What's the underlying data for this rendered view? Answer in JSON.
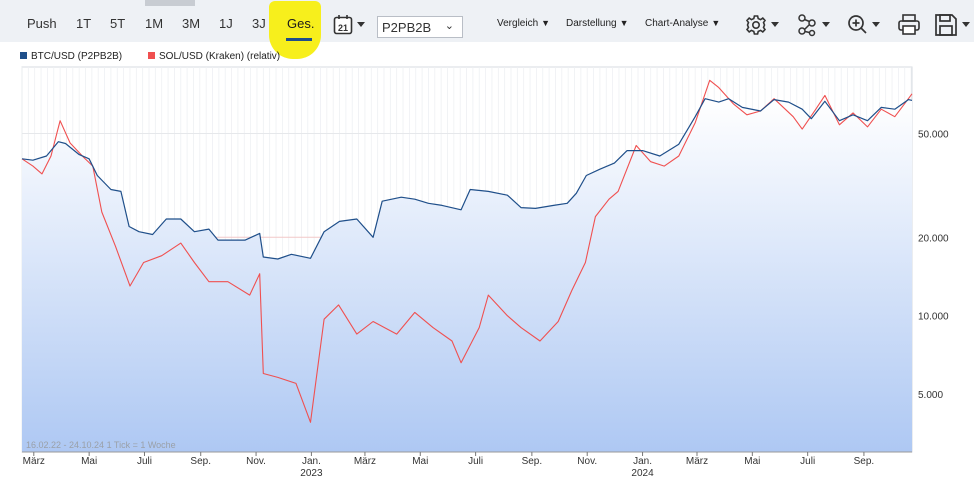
{
  "toolbar": {
    "tabs": [
      {
        "label": "Push",
        "active": false
      },
      {
        "label": "1T",
        "active": false
      },
      {
        "label": "5T",
        "active": false
      },
      {
        "label": "1M",
        "active": false
      },
      {
        "label": "3M",
        "active": false
      },
      {
        "label": "1J",
        "active": false
      },
      {
        "label": "3J",
        "active": false
      },
      {
        "label": "Ges.",
        "active": true
      }
    ],
    "calendar_day": "21",
    "exchange_select": "P2PB2B",
    "menus": {
      "compare": "Vergleich",
      "display": "Darstellung",
      "analysis": "Chart-Analyse"
    },
    "icons": [
      "calendar-icon",
      "gear-icon",
      "network-icon",
      "zoom-icon",
      "print-icon",
      "save-icon"
    ]
  },
  "legend": {
    "btc": {
      "label": "BTC/USD (P2PB2B)",
      "color": "#1f4f8a"
    },
    "sol": {
      "label": "SOL/USD (Kraken) (relativ)",
      "color": "#f05050"
    }
  },
  "caption": "16.02.22 - 24.10.24   1 Tick = 1 Woche",
  "chart_data": {
    "type": "line",
    "yscale": "log",
    "ylim": [
      3000,
      90000
    ],
    "y_ticks": [
      {
        "value": 5000,
        "label": "5.000"
      },
      {
        "value": 10000,
        "label": "10.000"
      },
      {
        "value": 20000,
        "label": "20.000"
      },
      {
        "value": 50000,
        "label": "50.000"
      }
    ],
    "x_range": [
      "2022-02-16",
      "2024-10-24"
    ],
    "x_ticks": [
      {
        "date": "2022-03-01",
        "label": "März",
        "year": ""
      },
      {
        "date": "2022-05-01",
        "label": "Mai",
        "year": ""
      },
      {
        "date": "2022-07-01",
        "label": "Juli",
        "year": ""
      },
      {
        "date": "2022-09-01",
        "label": "Sep.",
        "year": ""
      },
      {
        "date": "2022-11-01",
        "label": "Nov.",
        "year": ""
      },
      {
        "date": "2023-01-01",
        "label": "Jan.",
        "year": "2023"
      },
      {
        "date": "2023-03-01",
        "label": "März",
        "year": ""
      },
      {
        "date": "2023-05-01",
        "label": "Mai",
        "year": ""
      },
      {
        "date": "2023-07-01",
        "label": "Juli",
        "year": ""
      },
      {
        "date": "2023-09-01",
        "label": "Sep.",
        "year": ""
      },
      {
        "date": "2023-11-01",
        "label": "Nov.",
        "year": ""
      },
      {
        "date": "2024-01-01",
        "label": "Jan.",
        "year": "2024"
      },
      {
        "date": "2024-03-01",
        "label": "März",
        "year": ""
      },
      {
        "date": "2024-05-01",
        "label": "Mai",
        "year": ""
      },
      {
        "date": "2024-07-01",
        "label": "Juli",
        "year": ""
      },
      {
        "date": "2024-09-01",
        "label": "Sep.",
        "year": ""
      }
    ],
    "series": [
      {
        "name": "BTC/USD (P2PB2B)",
        "color": "#1f4f8a",
        "fill": true,
        "points": [
          [
            "2022-02-16",
            40000
          ],
          [
            "2022-02-28",
            39500
          ],
          [
            "2022-03-15",
            41000
          ],
          [
            "2022-03-28",
            46500
          ],
          [
            "2022-04-05",
            45800
          ],
          [
            "2022-04-20",
            41500
          ],
          [
            "2022-05-01",
            40000
          ],
          [
            "2022-05-10",
            34500
          ],
          [
            "2022-05-25",
            30500
          ],
          [
            "2022-06-05",
            30000
          ],
          [
            "2022-06-14",
            22000
          ],
          [
            "2022-06-25",
            21000
          ],
          [
            "2022-07-10",
            20500
          ],
          [
            "2022-07-25",
            23500
          ],
          [
            "2022-08-10",
            23500
          ],
          [
            "2022-08-25",
            21000
          ],
          [
            "2022-09-10",
            21500
          ],
          [
            "2022-09-20",
            19500
          ],
          [
            "2022-10-05",
            19500
          ],
          [
            "2022-10-20",
            19500
          ],
          [
            "2022-11-05",
            20700
          ],
          [
            "2022-11-09",
            16800
          ],
          [
            "2022-11-25",
            16500
          ],
          [
            "2022-12-10",
            17200
          ],
          [
            "2022-12-31",
            16600
          ],
          [
            "2023-01-15",
            21000
          ],
          [
            "2023-02-01",
            23000
          ],
          [
            "2023-02-20",
            23500
          ],
          [
            "2023-03-10",
            20000
          ],
          [
            "2023-03-20",
            27500
          ],
          [
            "2023-04-10",
            28500
          ],
          [
            "2023-04-25",
            28000
          ],
          [
            "2023-05-10",
            27000
          ],
          [
            "2023-05-25",
            26500
          ],
          [
            "2023-06-15",
            25500
          ],
          [
            "2023-06-25",
            30500
          ],
          [
            "2023-07-15",
            30000
          ],
          [
            "2023-08-05",
            29000
          ],
          [
            "2023-08-20",
            26000
          ],
          [
            "2023-09-05",
            25800
          ],
          [
            "2023-09-25",
            26500
          ],
          [
            "2023-10-10",
            27000
          ],
          [
            "2023-10-20",
            29500
          ],
          [
            "2023-10-31",
            34500
          ],
          [
            "2023-11-15",
            36500
          ],
          [
            "2023-12-01",
            38500
          ],
          [
            "2023-12-15",
            43000
          ],
          [
            "2024-01-01",
            43000
          ],
          [
            "2024-01-20",
            41000
          ],
          [
            "2024-02-10",
            45500
          ],
          [
            "2024-02-28",
            58000
          ],
          [
            "2024-03-10",
            68000
          ],
          [
            "2024-03-25",
            66000
          ],
          [
            "2024-04-05",
            68000
          ],
          [
            "2024-04-20",
            63000
          ],
          [
            "2024-05-10",
            61000
          ],
          [
            "2024-05-25",
            67500
          ],
          [
            "2024-06-10",
            66000
          ],
          [
            "2024-06-25",
            62000
          ],
          [
            "2024-07-05",
            57000
          ],
          [
            "2024-07-20",
            66500
          ],
          [
            "2024-08-05",
            56000
          ],
          [
            "2024-08-20",
            59000
          ],
          [
            "2024-09-05",
            56000
          ],
          [
            "2024-09-20",
            63000
          ],
          [
            "2024-10-05",
            62000
          ],
          [
            "2024-10-20",
            67500
          ],
          [
            "2024-10-24",
            67000
          ]
        ]
      },
      {
        "name": "SOL/USD (Kraken) (relativ)",
        "color": "#f05050",
        "fill": false,
        "points": [
          [
            "2022-02-16",
            40000
          ],
          [
            "2022-02-28",
            37500
          ],
          [
            "2022-03-10",
            35000
          ],
          [
            "2022-03-20",
            41000
          ],
          [
            "2022-03-30",
            56000
          ],
          [
            "2022-04-10",
            46000
          ],
          [
            "2022-04-25",
            40500
          ],
          [
            "2022-05-05",
            37500
          ],
          [
            "2022-05-15",
            25000
          ],
          [
            "2022-05-30",
            18500
          ],
          [
            "2022-06-15",
            13000
          ],
          [
            "2022-06-30",
            16000
          ],
          [
            "2022-07-20",
            17000
          ],
          [
            "2022-08-10",
            19000
          ],
          [
            "2022-08-25",
            16000
          ],
          [
            "2022-09-10",
            13500
          ],
          [
            "2022-10-01",
            13500
          ],
          [
            "2022-10-25",
            12000
          ],
          [
            "2022-11-05",
            14500
          ],
          [
            "2022-11-09",
            6000
          ],
          [
            "2022-11-25",
            5800
          ],
          [
            "2022-12-15",
            5500
          ],
          [
            "2022-12-31",
            3900
          ],
          [
            "2023-01-15",
            9700
          ],
          [
            "2023-01-31",
            11000
          ],
          [
            "2023-02-20",
            8500
          ],
          [
            "2023-03-10",
            9500
          ],
          [
            "2023-04-05",
            8500
          ],
          [
            "2023-04-25",
            10300
          ],
          [
            "2023-05-15",
            9000
          ],
          [
            "2023-06-05",
            8000
          ],
          [
            "2023-06-15",
            6600
          ],
          [
            "2023-07-05",
            9000
          ],
          [
            "2023-07-15",
            12000
          ],
          [
            "2023-08-05",
            10000
          ],
          [
            "2023-08-20",
            9000
          ],
          [
            "2023-09-10",
            8000
          ],
          [
            "2023-09-30",
            9500
          ],
          [
            "2023-10-15",
            12500
          ],
          [
            "2023-10-30",
            16000
          ],
          [
            "2023-11-10",
            24000
          ],
          [
            "2023-11-25",
            28000
          ],
          [
            "2023-12-05",
            30000
          ],
          [
            "2023-12-25",
            45000
          ],
          [
            "2024-01-10",
            39000
          ],
          [
            "2024-01-25",
            37500
          ],
          [
            "2024-02-10",
            41000
          ],
          [
            "2024-02-28",
            55000
          ],
          [
            "2024-03-15",
            80000
          ],
          [
            "2024-03-25",
            75000
          ],
          [
            "2024-04-10",
            65000
          ],
          [
            "2024-04-25",
            59000
          ],
          [
            "2024-05-10",
            61000
          ],
          [
            "2024-05-25",
            68000
          ],
          [
            "2024-06-15",
            58000
          ],
          [
            "2024-06-25",
            52000
          ],
          [
            "2024-07-10",
            62000
          ],
          [
            "2024-07-20",
            70000
          ],
          [
            "2024-08-05",
            54000
          ],
          [
            "2024-08-20",
            60000
          ],
          [
            "2024-09-05",
            53000
          ],
          [
            "2024-09-20",
            62000
          ],
          [
            "2024-10-05",
            58000
          ],
          [
            "2024-10-20",
            68000
          ],
          [
            "2024-10-24",
            71000
          ]
        ]
      }
    ]
  }
}
